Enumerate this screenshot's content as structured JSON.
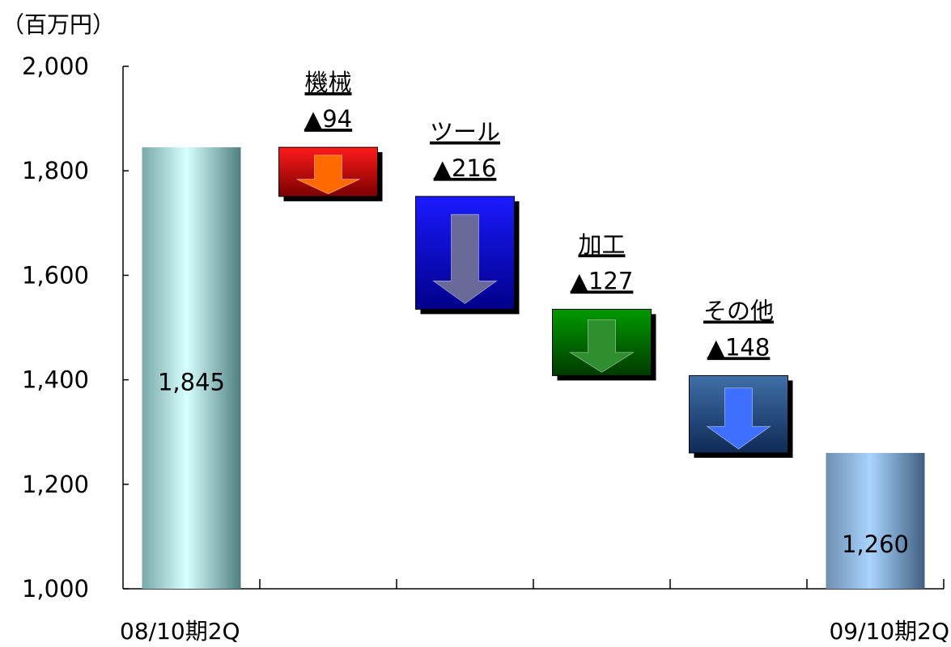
{
  "chart_data": {
    "type": "bar",
    "subtype": "waterfall",
    "title": "",
    "ylabel": "（百万円）",
    "ylim": [
      1000,
      2000
    ],
    "yticks": [
      "1,000",
      "1,200",
      "1,400",
      "1,600",
      "1,800",
      "2,000"
    ],
    "category_labels": [
      "08/10期2Q",
      "09/10期2Q"
    ],
    "totals": [
      {
        "value": 1845,
        "label": "1,845",
        "category_index": 0
      },
      {
        "value": 1260,
        "label": "1,260",
        "category_index": 5
      }
    ],
    "segments": [
      {
        "name": "機械",
        "change_label": "▲94",
        "from": 1845,
        "to": 1751,
        "color": "#e00000",
        "arrow_color": "#ff6a00"
      },
      {
        "name": "ツール",
        "change_label": "▲216",
        "from": 1751,
        "to": 1535,
        "color": "#1010e8",
        "arrow_color": "#6a6a9a"
      },
      {
        "name": "加工",
        "change_label": "▲127",
        "from": 1535,
        "to": 1408,
        "color": "#007a00",
        "arrow_color": "#2f8f2f"
      },
      {
        "name": "その他",
        "change_label": "▲148",
        "from": 1408,
        "to": 1260,
        "color": "#2a4f8a",
        "arrow_color": "#3f6fff"
      }
    ]
  }
}
